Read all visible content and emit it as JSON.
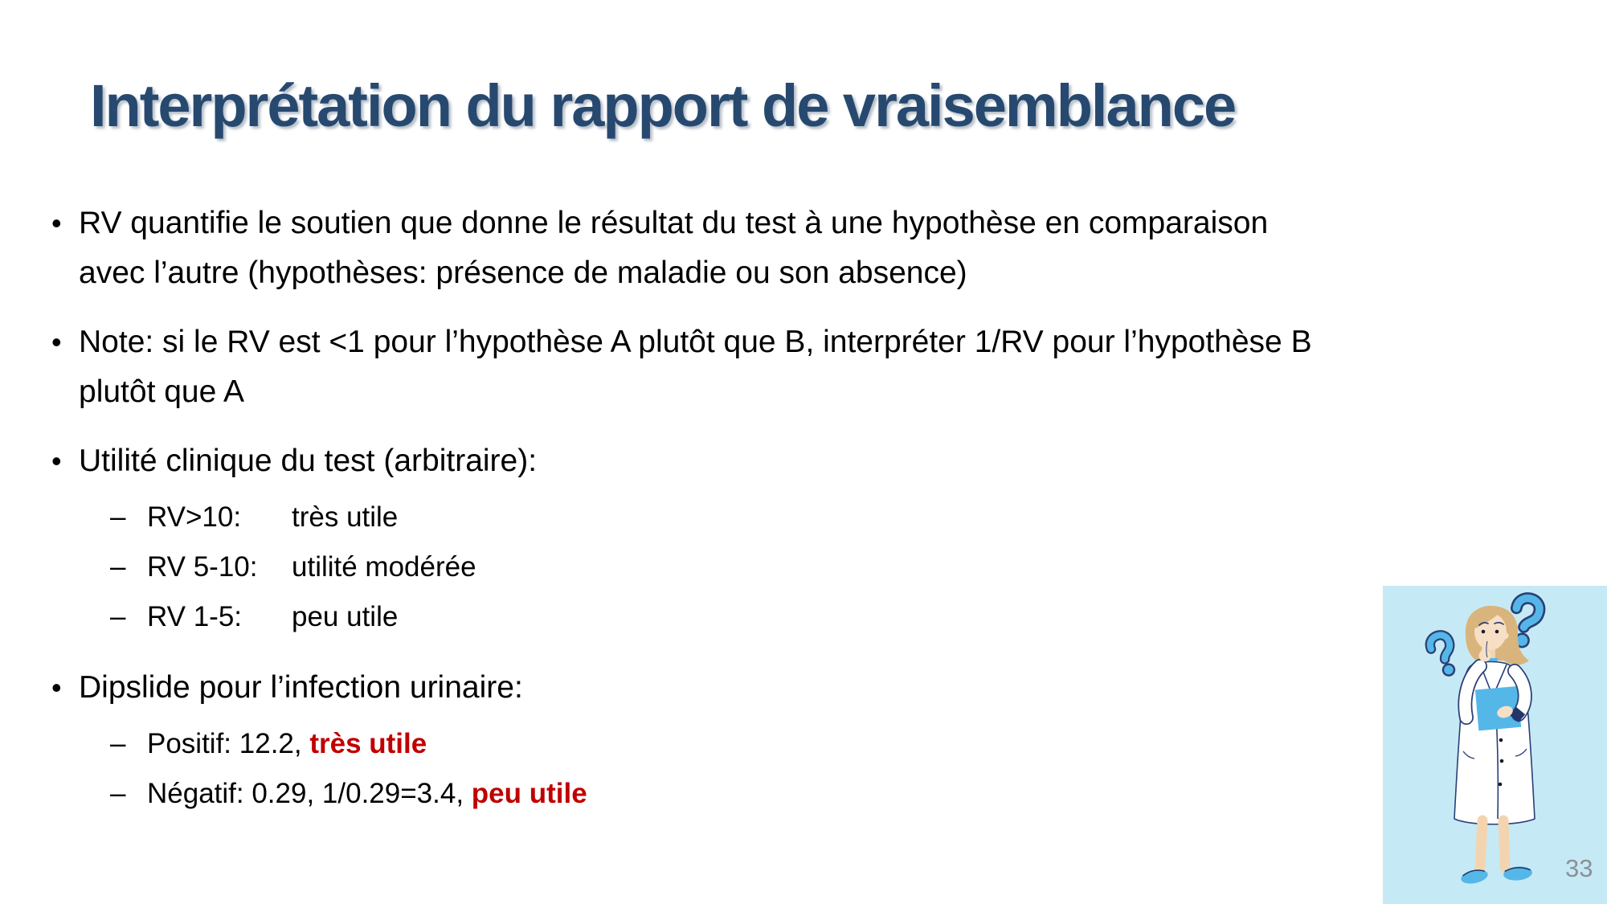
{
  "slide": {
    "title": "Interprétation du rapport de vraisemblance",
    "page_number": "33",
    "colors": {
      "title": "#27496F",
      "body_text": "#000000",
      "accent_red": "#C00000",
      "image_background": "#C6EAF5",
      "page_number": "#8A9096",
      "illustration_blue": "#55B7E8",
      "illustration_navy": "#2B3F77"
    },
    "bullets": [
      {
        "level": 1,
        "runs": [
          {
            "text": "RV quantifie le soutien que donne le résultat du test à une hypothèse en comparaison\navec l’autre (hypothèses: présence de maladie ou son absence)"
          }
        ]
      },
      {
        "level": 1,
        "runs": [
          {
            "text": "Note: si le RV est <1 pour l’hypothèse A plutôt que B, interpréter 1/RV pour l’hypothèse B\nplutôt que A"
          }
        ]
      },
      {
        "level": 1,
        "runs": [
          {
            "text": "Utilité clinique du test (arbitraire):"
          }
        ]
      },
      {
        "level": 2,
        "runs": [
          {
            "text": "RV>10:",
            "tab": true
          },
          {
            "text": "très utile"
          }
        ]
      },
      {
        "level": 2,
        "runs": [
          {
            "text": "RV 5-10:",
            "tab": true
          },
          {
            "text": "utilité modérée"
          }
        ]
      },
      {
        "level": 2,
        "runs": [
          {
            "text": "RV 1-5:",
            "tab": true
          },
          {
            "text": "peu utile"
          }
        ]
      },
      {
        "level": 1,
        "runs": [
          {
            "text": "Dipslide pour l’infection urinaire:"
          }
        ]
      },
      {
        "level": 2,
        "runs": [
          {
            "text": "Positif: 12.2, "
          },
          {
            "text": "très utile",
            "emphasis": true
          }
        ]
      },
      {
        "level": 2,
        "runs": [
          {
            "text": "Négatif: 0.29, 1/0.29=3.4, "
          },
          {
            "text": "peu utile",
            "emphasis": true
          }
        ]
      }
    ],
    "illustration": {
      "description": "thinking woman doctor in white coat with question marks",
      "icons": [
        "question-mark-icon",
        "question-mark-icon"
      ]
    }
  }
}
